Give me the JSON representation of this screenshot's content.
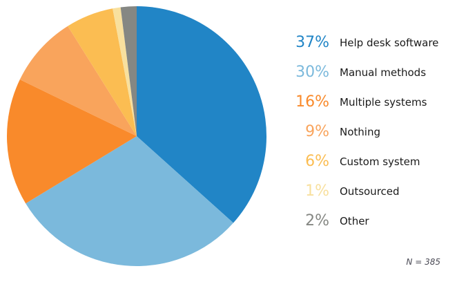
{
  "chart_data": {
    "type": "pie",
    "series": [
      {
        "label": "Help desk software",
        "pct_label": "37%",
        "value": 37,
        "color": "#2185C6"
      },
      {
        "label": "Manual methods",
        "pct_label": "30%",
        "value": 30,
        "color": "#7BB9DC"
      },
      {
        "label": "Multiple systems",
        "pct_label": "16%",
        "value": 16,
        "color": "#F98A2B"
      },
      {
        "label": "Nothing",
        "pct_label": "9%",
        "value": 9,
        "color": "#F9A45C"
      },
      {
        "label": "Custom system",
        "pct_label": "6%",
        "value": 6,
        "color": "#FBBD52"
      },
      {
        "label": "Outsourced",
        "pct_label": "1%",
        "value": 1,
        "color": "#F8E09E"
      },
      {
        "label": "Other",
        "pct_label": "2%",
        "value": 2,
        "color": "#858783"
      }
    ],
    "start_angle_deg": 0,
    "direction": "clockwise",
    "legend_position": "right",
    "note": "N = 385",
    "label_color": "#1A1A1A",
    "note_color": "#4A4A55",
    "background": "#FFFFFF"
  }
}
